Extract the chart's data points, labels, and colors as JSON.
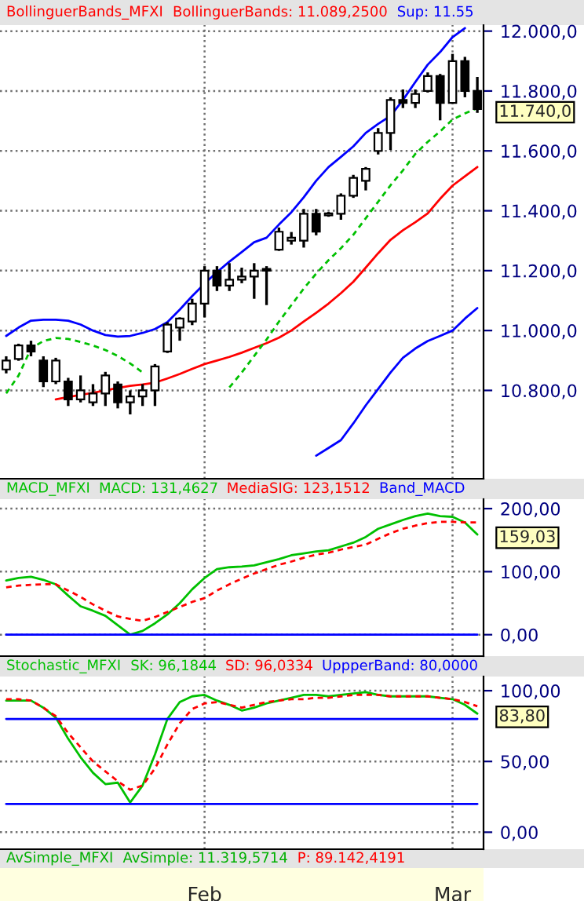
{
  "chart_data": [
    {
      "type": "candlestick",
      "title": "BollinguerBands_MFXI",
      "categories": [
        null,
        null,
        null,
        null,
        null,
        null,
        null,
        null,
        null,
        null,
        null,
        null,
        null,
        null,
        null,
        null,
        null,
        null,
        null,
        null,
        null,
        null,
        null,
        null,
        null,
        null,
        null,
        null,
        null,
        null,
        null,
        null,
        null,
        null,
        null,
        null,
        null,
        null,
        null
      ],
      "ohlc": [
        [
          10870,
          10914,
          10857,
          10900
        ],
        [
          10905,
          10956,
          10899,
          10950
        ],
        [
          10950,
          10966,
          10914,
          10930
        ],
        [
          10900,
          10914,
          10811,
          10830
        ],
        [
          10830,
          10909,
          10821,
          10900
        ],
        [
          10830,
          10842,
          10748,
          10770
        ],
        [
          10770,
          10850,
          10760,
          10800
        ],
        [
          10760,
          10821,
          10748,
          10790
        ],
        [
          10790,
          10862,
          10748,
          10850
        ],
        [
          10820,
          10830,
          10740,
          10760
        ],
        [
          10760,
          10800,
          10720,
          10780
        ],
        [
          10780,
          10821,
          10748,
          10800
        ],
        [
          10800,
          10888,
          10748,
          10880
        ],
        [
          10930,
          11028,
          10925,
          11020
        ],
        [
          11010,
          11044,
          10966,
          11040
        ],
        [
          11030,
          11106,
          11018,
          11090
        ],
        [
          11090,
          11215,
          11044,
          11200
        ],
        [
          11200,
          11215,
          11132,
          11150
        ],
        [
          11150,
          11225,
          11132,
          11170
        ],
        [
          11170,
          11210,
          11158,
          11180
        ],
        [
          11180,
          11225,
          11106,
          11200
        ],
        [
          11200,
          11215,
          11085,
          11205
        ],
        [
          11270,
          11344,
          11266,
          11330
        ],
        [
          11300,
          11329,
          11287,
          11310
        ],
        [
          11300,
          11406,
          11277,
          11390
        ],
        [
          11390,
          11406,
          11318,
          11330
        ],
        [
          11385,
          11396,
          11380,
          11390
        ],
        [
          11390,
          11458,
          11370,
          11450
        ],
        [
          11450,
          11520,
          11443,
          11510
        ],
        [
          11500,
          11546,
          11468,
          11540
        ],
        [
          11600,
          11676,
          11588,
          11660
        ],
        [
          11660,
          11779,
          11603,
          11770
        ],
        [
          11770,
          11805,
          11743,
          11760
        ],
        [
          11760,
          11805,
          11743,
          11790
        ],
        [
          11800,
          11862,
          11795,
          11850
        ],
        [
          11850,
          11857,
          11702,
          11760
        ],
        [
          11760,
          11924,
          11759,
          11900
        ],
        [
          11900,
          11914,
          11779,
          11800
        ],
        [
          11800,
          11847,
          11727,
          11740
        ]
      ],
      "series": [
        {
          "name": "BollinguerBands: 11.089,2500",
          "type": "line",
          "color": "#ff0000",
          "line_style": "solid",
          "values": [
            null,
            null,
            null,
            null,
            10770,
            10778,
            10785,
            10792,
            10800,
            10808,
            10815,
            10820,
            10826,
            10840,
            10855,
            10872,
            10888,
            10900,
            10912,
            10926,
            10942,
            10958,
            10976,
            11000,
            11030,
            11059,
            11090,
            11125,
            11163,
            11210,
            11258,
            11303,
            11335,
            11362,
            11391,
            11440,
            11484,
            11515,
            11546
          ]
        },
        {
          "name": "Sup: 11.55",
          "type": "line",
          "color": "#0000ff",
          "line_style": "solid",
          "values": [
            10982,
            11010,
            11033,
            11036,
            11036,
            11033,
            11020,
            11000,
            10985,
            10980,
            10982,
            10992,
            11005,
            11028,
            11070,
            11115,
            11157,
            11195,
            11230,
            11262,
            11295,
            11310,
            11354,
            11395,
            11445,
            11500,
            11546,
            11580,
            11615,
            11660,
            11690,
            11717,
            11770,
            11830,
            11888,
            11930,
            11980,
            12010,
            null
          ]
        },
        {
          "type": "line",
          "color": "#0000ff",
          "line_style": "solid",
          "values": [
            null,
            null,
            null,
            null,
            null,
            null,
            null,
            null,
            null,
            null,
            null,
            null,
            null,
            null,
            null,
            null,
            null,
            null,
            null,
            null,
            null,
            null,
            null,
            null,
            null,
            10582,
            10608,
            10634,
            10690,
            10750,
            10805,
            10860,
            10909,
            10940,
            10965,
            10982,
            11000,
            11040,
            11075
          ]
        },
        {
          "type": "line",
          "color": "#00c000",
          "line_style": "dashed",
          "values": [
            10790,
            10850,
            10940,
            10965,
            10975,
            10972,
            10962,
            10950,
            10935,
            10915,
            10890,
            10860,
            null,
            null,
            null,
            null,
            null,
            null,
            10810,
            10860,
            10915,
            10970,
            11030,
            11085,
            11140,
            11190,
            11235,
            11275,
            11320,
            11375,
            11430,
            11485,
            11535,
            11590,
            11630,
            11665,
            11705,
            11725,
            11743
          ]
        }
      ],
      "ylim": [
        10505,
        12020
      ],
      "yticks": [
        {
          "value": 10800,
          "label": "10.800,0"
        },
        {
          "value": 11000,
          "label": "11.000,0"
        },
        {
          "value": 11200,
          "label": "11.200,0"
        },
        {
          "value": 11400,
          "label": "11.400,0"
        },
        {
          "value": 11600,
          "label": "11.600,0"
        },
        {
          "value": 11800,
          "label": "11.800,0"
        },
        {
          "value": 12000,
          "label": "12.000,0"
        }
      ],
      "annotations": [
        "11.740,0"
      ],
      "grid": true,
      "legend": "top",
      "tick_labels": "y"
    },
    {
      "type": "line",
      "title": "MACD_MFXI",
      "categories": [
        null,
        null,
        null,
        null,
        null,
        null,
        null,
        null,
        null,
        null,
        null,
        null,
        null,
        null,
        null,
        null,
        null,
        null,
        null,
        null,
        null,
        null,
        null,
        null,
        null,
        null,
        null,
        null,
        null,
        null,
        null,
        null,
        null,
        null,
        null,
        null,
        null,
        null,
        null
      ],
      "series": [
        {
          "name": "MACD: 131,4627",
          "color": "#00c000",
          "line_style": "solid",
          "values": [
            86,
            90,
            92,
            87,
            80,
            62,
            45,
            38,
            30,
            15,
            0,
            6,
            18,
            32,
            50,
            72,
            90,
            104,
            107,
            108,
            110,
            115,
            120,
            126,
            129,
            132,
            134,
            140,
            146,
            155,
            168,
            175,
            182,
            188,
            192,
            188,
            187,
            178,
            159.03
          ]
        },
        {
          "name": "MediaSIG: 123,1512",
          "color": "#ff0000",
          "line_style": "dashed",
          "values": [
            75,
            78,
            79,
            80,
            80,
            70,
            60,
            48,
            38,
            29,
            25,
            22,
            28,
            36,
            44,
            52,
            58,
            70,
            80,
            89,
            97,
            104,
            111,
            116,
            122,
            127,
            130,
            135,
            139,
            143,
            152,
            161,
            168,
            173,
            177,
            179,
            179,
            178,
            178
          ]
        },
        {
          "name": "Band_MACD",
          "color": "#0000ff",
          "line_style": "solid",
          "values": [
            0,
            0,
            0,
            0,
            0,
            0,
            0,
            0,
            0,
            0,
            0,
            0,
            0,
            0,
            0,
            0,
            0,
            0,
            0,
            0,
            0,
            0,
            0,
            0,
            0,
            0,
            0,
            0,
            0,
            0,
            0,
            0,
            0,
            0,
            0,
            0,
            0,
            0,
            0
          ]
        }
      ],
      "ylim": [
        -34,
        215
      ],
      "yticks": [
        {
          "value": 0,
          "label": "0,00"
        },
        {
          "value": 100,
          "label": "100,00"
        },
        {
          "value": 200,
          "label": "200,00"
        }
      ],
      "annotations": [
        "159,03"
      ],
      "grid": true,
      "legend": "top",
      "tick_labels": "y"
    },
    {
      "type": "line",
      "title": "Stochastic_MFXI",
      "categories": [
        null,
        null,
        null,
        null,
        null,
        null,
        null,
        null,
        null,
        null,
        null,
        null,
        null,
        null,
        null,
        null,
        "Feb",
        null,
        null,
        null,
        null,
        null,
        null,
        null,
        null,
        null,
        null,
        null,
        null,
        null,
        null,
        null,
        null,
        null,
        null,
        null,
        "Mar",
        null,
        null
      ],
      "series": [
        {
          "name": "SK: 96,1844",
          "color": "#00c000",
          "line_style": "solid",
          "values": [
            93,
            93,
            93,
            88,
            81,
            66,
            53,
            42,
            34,
            35,
            21,
            33,
            55,
            80,
            92,
            96,
            97,
            93,
            90,
            86,
            88,
            91,
            93,
            95,
            97,
            97,
            96,
            97,
            98,
            99,
            97,
            96,
            96,
            96,
            96,
            95,
            94,
            90,
            83.8
          ]
        },
        {
          "name": "SD: 96,0334",
          "color": "#ff0000",
          "line_style": "dashed",
          "values": [
            94,
            94,
            93,
            88,
            82,
            70,
            60,
            50,
            43,
            36,
            30,
            33,
            45,
            62,
            77,
            87,
            91,
            92,
            90,
            88,
            90,
            92,
            93,
            94,
            94,
            95,
            95,
            96,
            97,
            97,
            97,
            96,
            96,
            96,
            96,
            95,
            94,
            92,
            89
          ]
        },
        {
          "name": "UppperBand: 80,0000",
          "color": "#0000ff",
          "line_style": "solid",
          "values": [
            80,
            80,
            80,
            80,
            80,
            80,
            80,
            80,
            80,
            80,
            80,
            80,
            80,
            80,
            80,
            80,
            80,
            80,
            80,
            80,
            80,
            80,
            80,
            80,
            80,
            80,
            80,
            80,
            80,
            80,
            80,
            80,
            80,
            80,
            80,
            80,
            80,
            80,
            80
          ]
        },
        {
          "color": "#0000ff",
          "line_style": "solid",
          "values": [
            20,
            20,
            20,
            20,
            20,
            20,
            20,
            20,
            20,
            20,
            20,
            20,
            20,
            20,
            20,
            20,
            20,
            20,
            20,
            20,
            20,
            20,
            20,
            20,
            20,
            20,
            20,
            20,
            20,
            20,
            20,
            20,
            20,
            20,
            20,
            20,
            20,
            20,
            20
          ]
        }
      ],
      "ylim": [
        -12,
        110
      ],
      "yticks": [
        {
          "value": 0,
          "label": "0,00"
        },
        {
          "value": 50,
          "label": "50,00"
        },
        {
          "value": 100,
          "label": "100,00"
        }
      ],
      "annotations": [
        "83,80",
        "AvSimple_MFXI",
        "AvSimple: 11.319,5714",
        "P: 89.142,4191"
      ],
      "grid": true,
      "legend": "top"
    }
  ]
}
